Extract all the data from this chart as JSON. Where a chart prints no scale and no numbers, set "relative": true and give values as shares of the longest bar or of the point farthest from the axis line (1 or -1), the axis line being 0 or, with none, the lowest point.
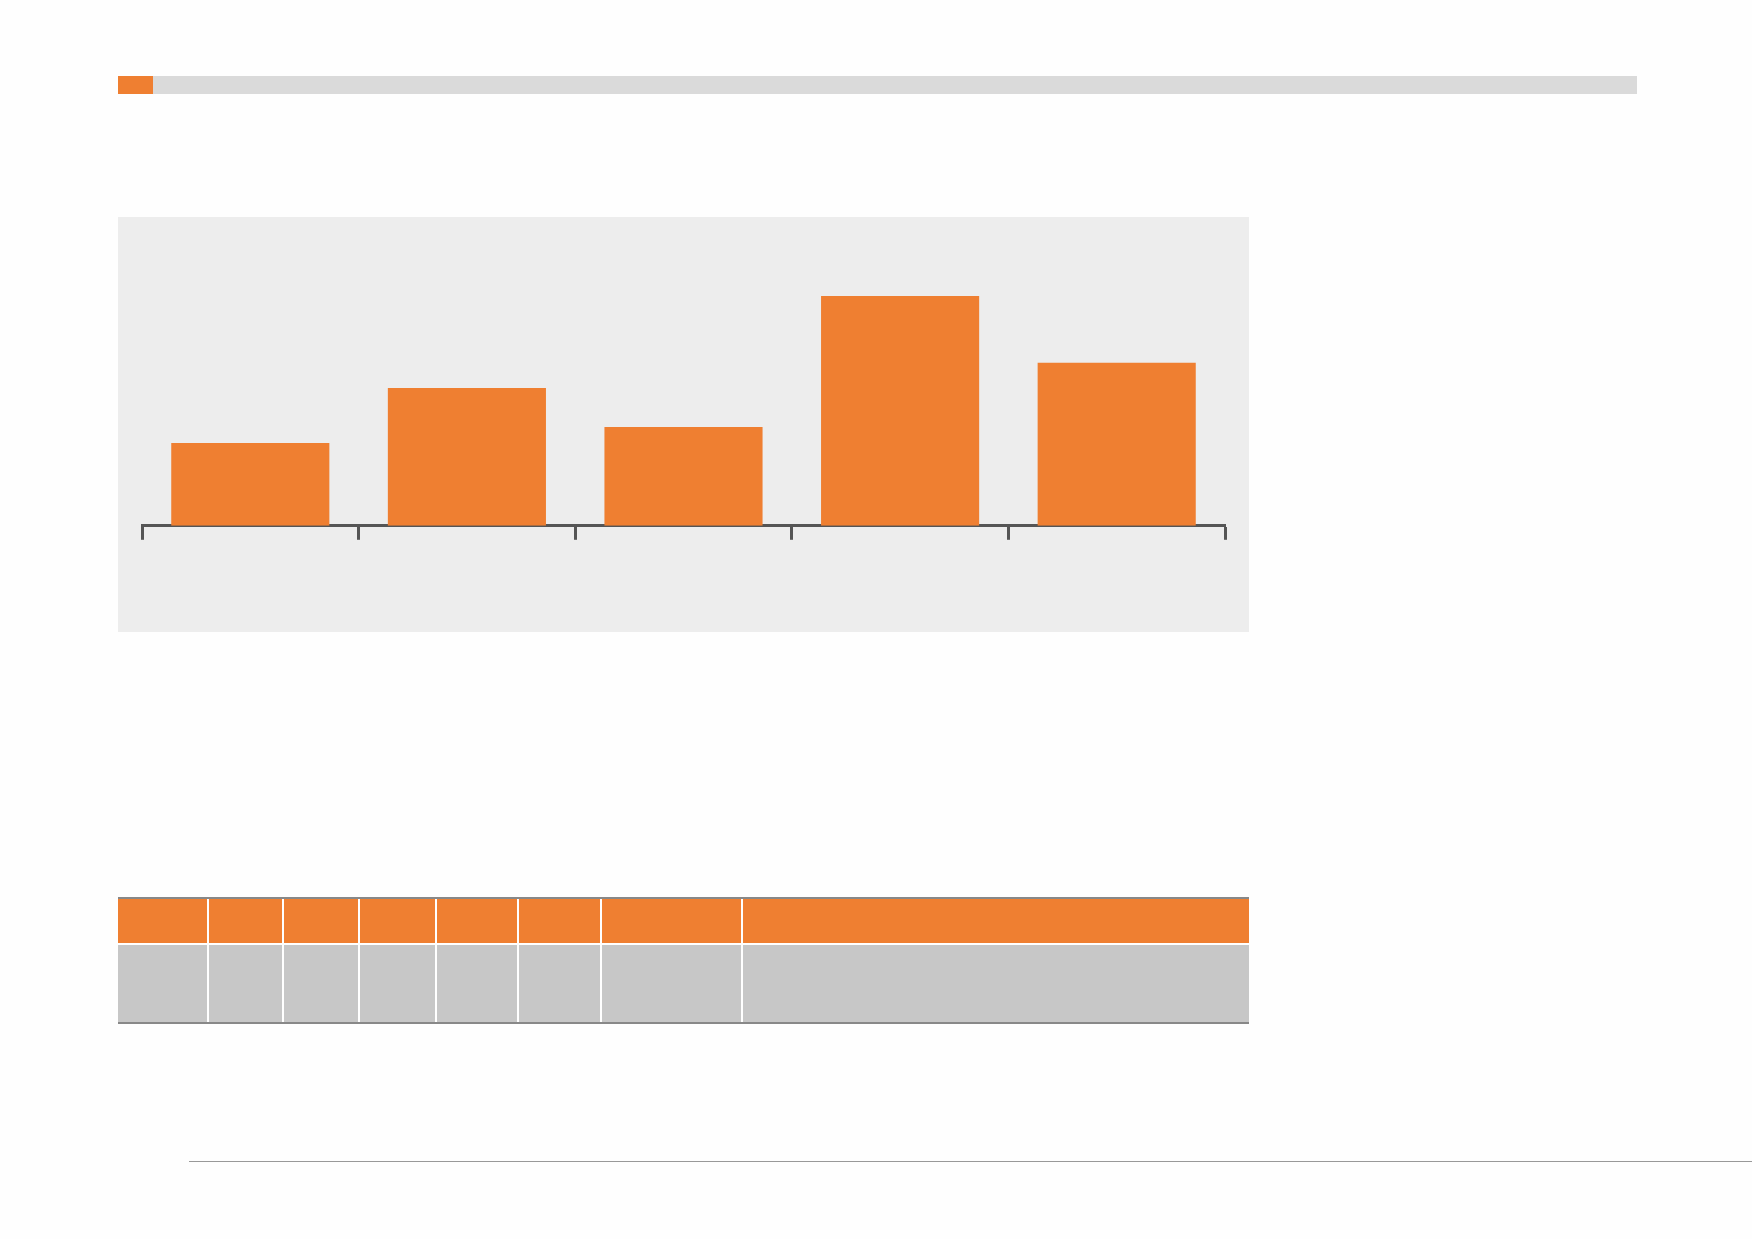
{
  "chart_data": {
    "type": "bar",
    "relative": true,
    "categories": [
      null,
      null,
      null,
      null,
      null
    ],
    "values": [
      0.36,
      0.6,
      0.43,
      1,
      0.71
    ],
    "color": "#ef7f31"
  }
}
